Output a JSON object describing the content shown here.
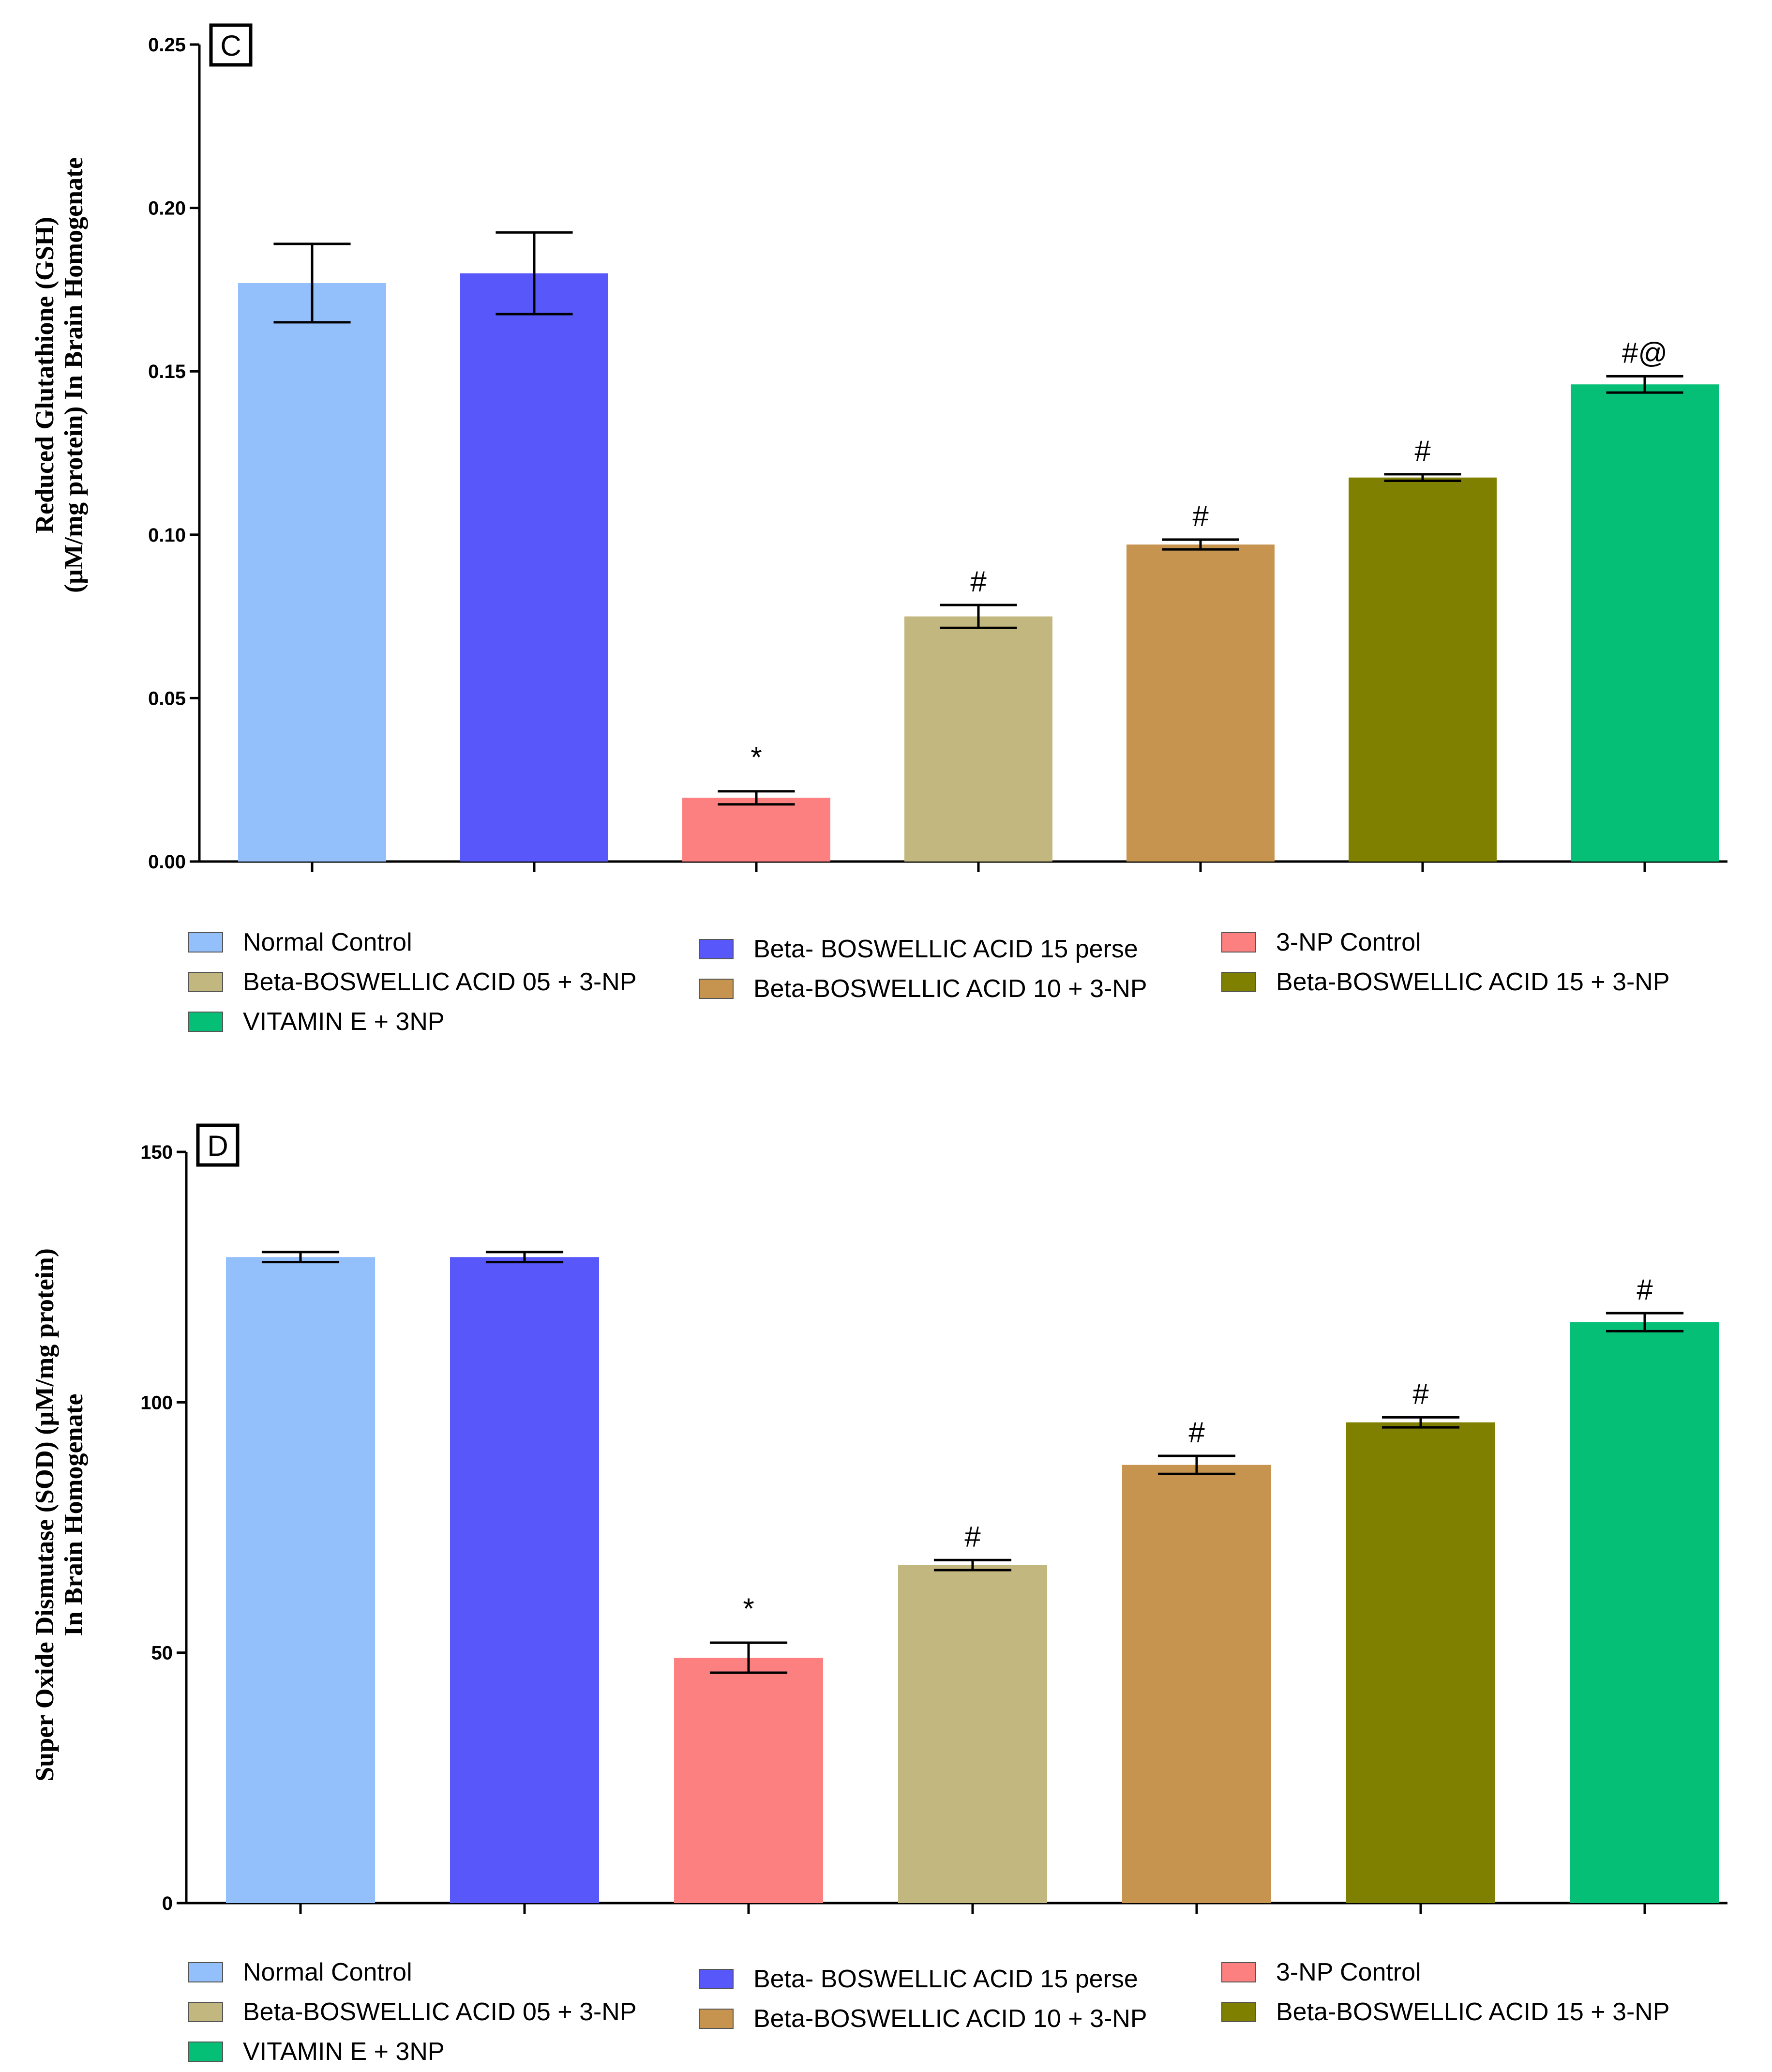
{
  "chart_data": [
    {
      "type": "bar",
      "panel_label": "C",
      "ylabel_line1": "Reduced Glutathione (GSH)",
      "ylabel_line2": "(µM/mg protein) In Brain Homogenate",
      "ylim": [
        0,
        0.25
      ],
      "yticks": [
        "0.00",
        "0.05",
        "0.10",
        "0.15",
        "0.20",
        "0.25"
      ],
      "ytick_values": [
        0,
        0.05,
        0.1,
        0.15,
        0.2,
        0.25
      ],
      "categories": [
        "Normal Control",
        "Beta- BOSWELLIC ACID 15 perse",
        "3-NP Control",
        "Beta-BOSWELLIC ACID 05 + 3-NP",
        "Beta-BOSWELLIC ACID 10 + 3-NP",
        "Beta-BOSWELLIC ACID 15 + 3-NP",
        "VITAMIN E + 3NP"
      ],
      "values": [
        0.177,
        0.18,
        0.0195,
        0.075,
        0.097,
        0.1175,
        0.146
      ],
      "errors": [
        0.012,
        0.0125,
        0.002,
        0.0035,
        0.0015,
        0.001,
        0.0025
      ],
      "annotations": [
        "",
        "",
        "*",
        "#",
        "#",
        "#",
        "#@"
      ],
      "colors": [
        "#93BFFA",
        "#5757FA",
        "#FC8080",
        "#C2B77F",
        "#C6944F",
        "#808000",
        "#05BF77"
      ]
    },
    {
      "type": "bar",
      "panel_label": "D",
      "ylabel_line1": "Super Oxide Dismutase (SOD) (µM/mg protein)",
      "ylabel_line2": "In Brain Homogenate",
      "ylim": [
        0,
        150
      ],
      "yticks": [
        "0",
        "50",
        "100",
        "150"
      ],
      "ytick_values": [
        0,
        50,
        100,
        150
      ],
      "categories": [
        "Normal Control",
        "Beta- BOSWELLIC ACID 15 perse",
        "3-NP Control",
        "Beta-BOSWELLIC ACID 05 + 3-NP",
        "Beta-BOSWELLIC ACID 10 + 3-NP",
        "Beta-BOSWELLIC ACID 15 + 3-NP",
        "VITAMIN E + 3NP"
      ],
      "values": [
        129,
        129,
        49,
        67.5,
        87.5,
        96,
        116
      ],
      "errors": [
        1,
        1,
        3,
        1,
        1.8,
        1,
        1.8
      ],
      "annotations": [
        "",
        "",
        "*",
        "#",
        "#",
        "#",
        "#"
      ],
      "colors": [
        "#93BFFA",
        "#5757FA",
        "#FC8080",
        "#C2B77F",
        "#C6944F",
        "#808000",
        "#05BF77"
      ]
    }
  ],
  "legend": {
    "items": [
      "Normal Control",
      "Beta- BOSWELLIC ACID 15 perse",
      "3-NP Control",
      "Beta-BOSWELLIC ACID 05 + 3-NP",
      "Beta-BOSWELLIC ACID 10 + 3-NP",
      "Beta-BOSWELLIC ACID 15 + 3-NP",
      "VITAMIN E + 3NP"
    ]
  }
}
